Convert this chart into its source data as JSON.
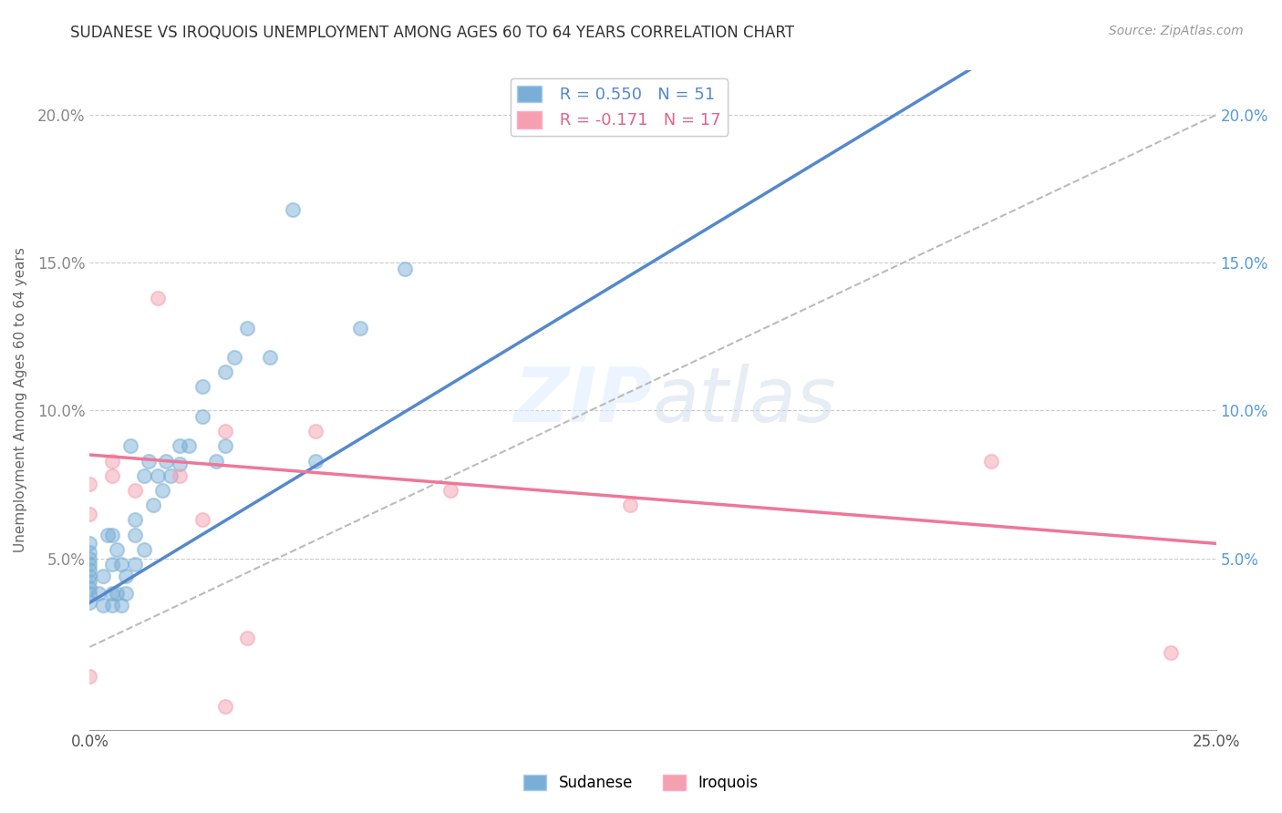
{
  "title": "SUDANESE VS IROQUOIS UNEMPLOYMENT AMONG AGES 60 TO 64 YEARS CORRELATION CHART",
  "source": "Source: ZipAtlas.com",
  "ylabel": "Unemployment Among Ages 60 to 64 years",
  "xlim": [
    0.0,
    0.25
  ],
  "ylim": [
    -0.008,
    0.215
  ],
  "xticks": [
    0.0,
    0.05,
    0.1,
    0.15,
    0.2,
    0.25
  ],
  "yticks": [
    0.05,
    0.1,
    0.15,
    0.2
  ],
  "xtick_labels": [
    "0.0%",
    "",
    "",
    "",
    "",
    "25.0%"
  ],
  "ytick_labels": [
    "5.0%",
    "10.0%",
    "15.0%",
    "20.0%"
  ],
  "right_ytick_labels": [
    "5.0%",
    "10.0%",
    "15.0%",
    "20.0%"
  ],
  "sudanese_R": 0.55,
  "sudanese_N": 51,
  "iroquois_R": -0.171,
  "iroquois_N": 17,
  "sudanese_color": "#7aaed6",
  "iroquois_color": "#f4a0b0",
  "sudanese_x": [
    0.0,
    0.0,
    0.0,
    0.0,
    0.0,
    0.0,
    0.0,
    0.0,
    0.0,
    0.0,
    0.002,
    0.003,
    0.003,
    0.004,
    0.005,
    0.005,
    0.005,
    0.005,
    0.006,
    0.006,
    0.007,
    0.007,
    0.008,
    0.008,
    0.009,
    0.01,
    0.01,
    0.01,
    0.012,
    0.012,
    0.013,
    0.014,
    0.015,
    0.016,
    0.017,
    0.018,
    0.02,
    0.02,
    0.022,
    0.025,
    0.025,
    0.028,
    0.03,
    0.03,
    0.032,
    0.035,
    0.04,
    0.045,
    0.05,
    0.06,
    0.07
  ],
  "sudanese_y": [
    0.035,
    0.038,
    0.04,
    0.042,
    0.044,
    0.046,
    0.048,
    0.05,
    0.052,
    0.055,
    0.038,
    0.034,
    0.044,
    0.058,
    0.034,
    0.038,
    0.048,
    0.058,
    0.038,
    0.053,
    0.034,
    0.048,
    0.038,
    0.044,
    0.088,
    0.048,
    0.058,
    0.063,
    0.053,
    0.078,
    0.083,
    0.068,
    0.078,
    0.073,
    0.083,
    0.078,
    0.082,
    0.088,
    0.088,
    0.098,
    0.108,
    0.083,
    0.088,
    0.113,
    0.118,
    0.128,
    0.118,
    0.168,
    0.083,
    0.128,
    0.148
  ],
  "iroquois_x": [
    0.0,
    0.0,
    0.0,
    0.005,
    0.005,
    0.01,
    0.015,
    0.02,
    0.025,
    0.03,
    0.035,
    0.05,
    0.08,
    0.12,
    0.2,
    0.24,
    0.03
  ],
  "iroquois_y": [
    0.01,
    0.065,
    0.075,
    0.078,
    0.083,
    0.073,
    0.138,
    0.078,
    0.063,
    0.093,
    0.023,
    0.093,
    0.073,
    0.068,
    0.083,
    0.018,
    0.0
  ]
}
